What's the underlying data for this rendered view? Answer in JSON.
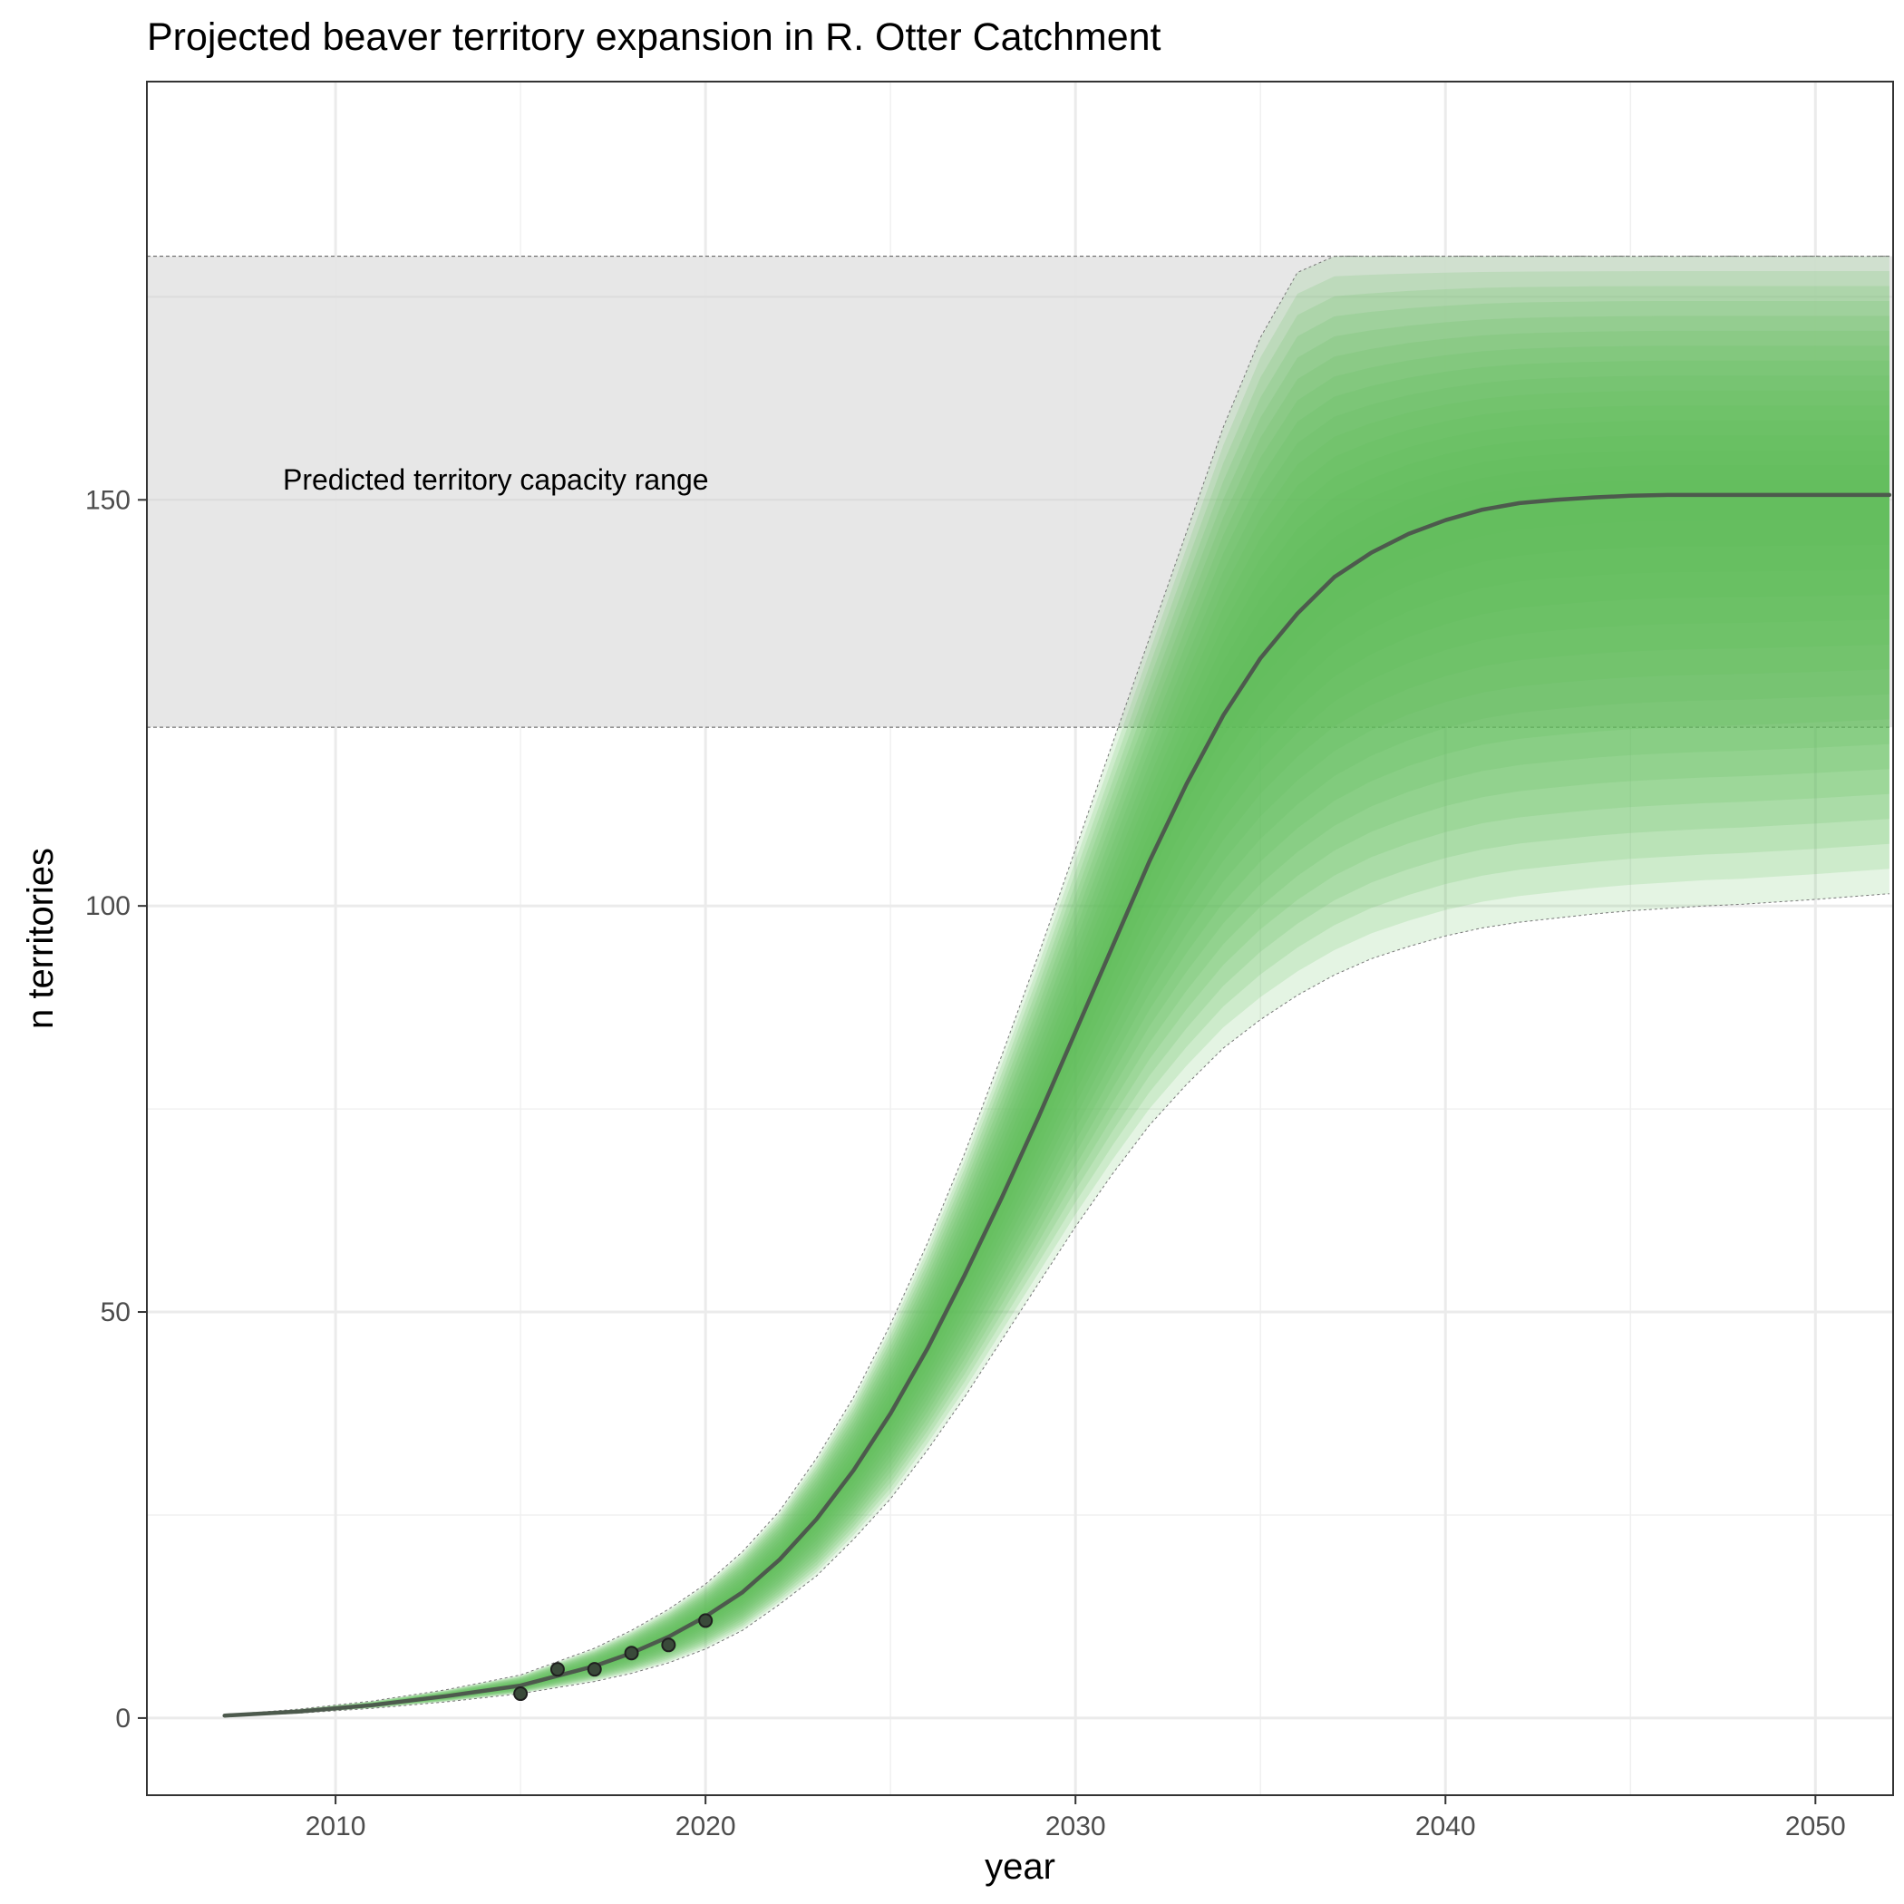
{
  "chart_data": {
    "type": "line",
    "title": "Projected beaver territory expansion in R. Otter Catchment",
    "xlabel": "year",
    "ylabel": "n territories",
    "xlim": [
      2004.9,
      2052.1
    ],
    "ylim": [
      -9.5,
      201.5
    ],
    "x_ticks": [
      2010,
      2020,
      2030,
      2040,
      2050
    ],
    "y_ticks": [
      0,
      50,
      100,
      150
    ],
    "grid": true,
    "capacity_band": {
      "label": "Predicted territory capacity range",
      "ymin": 122,
      "ymax": 180,
      "color": "#e6e6e6"
    },
    "observed": {
      "x": [
        2015,
        2016,
        2017,
        2018,
        2019,
        2020
      ],
      "y": [
        3,
        6,
        6,
        8,
        9,
        12
      ]
    },
    "projection": {
      "x": [
        2007,
        2009,
        2011,
        2013,
        2015,
        2017,
        2018,
        2019,
        2020,
        2021,
        2022,
        2023,
        2024,
        2025,
        2026,
        2027,
        2028,
        2029,
        2030,
        2031,
        2032,
        2033,
        2034,
        2035,
        2036,
        2037,
        2038,
        2039,
        2040,
        2041,
        2042,
        2043,
        2044,
        2045,
        2046,
        2047,
        2048,
        2049,
        2050,
        2052
      ],
      "median": [
        0.3,
        0.8,
        1.6,
        2.7,
        4.0,
        6.4,
        8.0,
        10.0,
        12.5,
        15.5,
        19.5,
        24.5,
        30.5,
        37.5,
        45.5,
        54.5,
        64.0,
        74.0,
        84.5,
        95.0,
        105.5,
        115.0,
        123.5,
        130.5,
        136.0,
        140.5,
        143.5,
        145.8,
        147.5,
        148.8,
        149.6,
        150.0,
        150.3,
        150.5,
        150.6,
        150.6,
        150.6,
        150.6,
        150.6,
        150.6
      ],
      "upper": [
        0.4,
        1.1,
        2.1,
        3.5,
        5.3,
        8.6,
        10.8,
        13.4,
        16.5,
        20.5,
        25.5,
        32.0,
        39.5,
        48.5,
        58.5,
        69.5,
        81.5,
        94.0,
        107.0,
        120.0,
        133.0,
        146.0,
        159.0,
        170.0,
        178.0,
        180.0,
        180.0,
        180.0,
        180.0,
        180.0,
        180.0,
        180.0,
        180.0,
        180.0,
        180.0,
        180.0,
        180.0,
        180.0,
        180.0,
        180.0
      ],
      "lower": [
        0.2,
        0.6,
        1.2,
        2.0,
        3.0,
        4.5,
        5.5,
        6.8,
        8.5,
        10.8,
        14.0,
        17.5,
        22.0,
        27.0,
        33.0,
        39.5,
        46.5,
        53.5,
        60.5,
        67.0,
        73.0,
        78.0,
        82.5,
        86.0,
        89.0,
        91.5,
        93.5,
        95.0,
        96.3,
        97.3,
        98.0,
        98.5,
        99.0,
        99.4,
        99.7,
        100.0,
        100.2,
        100.5,
        100.8,
        101.5
      ],
      "fill_color": "#5dbb5a",
      "line_color": "#4d5a4d"
    }
  }
}
